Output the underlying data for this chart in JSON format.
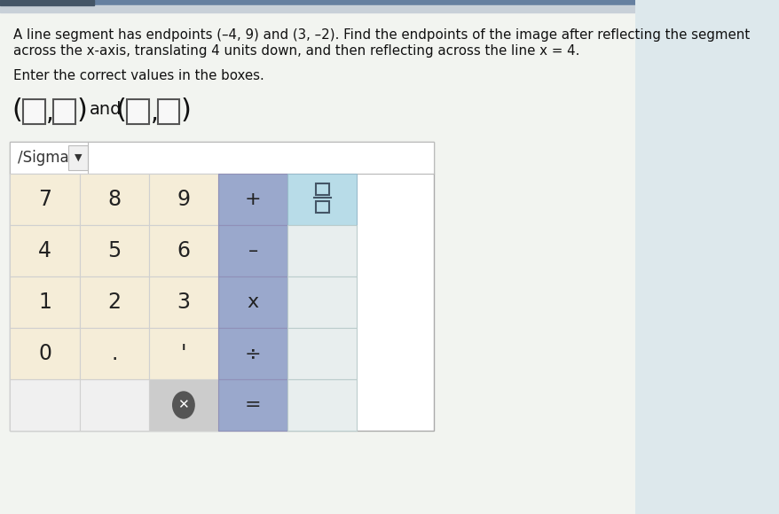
{
  "bg_color": "#dde8ec",
  "panel_bg": "#f0f4f2",
  "top_bar_color1": "#6680a0",
  "top_bar_color2": "#c8d0d8",
  "title_line1": "A line segment has endpoints (–4, 9) and (3, –2). Find the endpoints of the image after reflecting the segment",
  "title_line2": "across the x-axis, translating 4 units down, and then reflecting across the line x = 4.",
  "subtitle": "Enter the correct values in the boxes.",
  "sigma_label": "/Sigma",
  "number_keys": [
    [
      "7",
      "8",
      "9"
    ],
    [
      "4",
      "5",
      "6"
    ],
    [
      "1",
      "2",
      "3"
    ],
    [
      "0",
      ".",
      "'"
    ]
  ],
  "op_keys": [
    "+",
    "–",
    "x",
    "÷",
    "="
  ],
  "keypad_num_bg": "#f5edd8",
  "keypad_op_bg": "#9aa8cc",
  "keypad_frac_bg": "#b8dce8",
  "keypad_backspace_bg": "#c8c8c8",
  "keypad_empty_bg": "#e8eeee",
  "keypad_border": "#d0d0d0",
  "sigma_border": "#c8c8c8",
  "text_color": "#111111",
  "title_fontsize": 10.8,
  "key_fontsize": 17,
  "sigma_fontsize": 12,
  "answer_fontsize": 22
}
